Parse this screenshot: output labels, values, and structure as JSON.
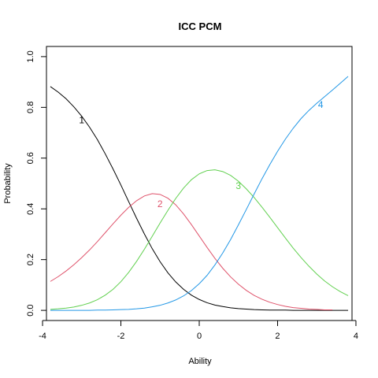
{
  "chart_data": {
    "type": "line",
    "title": "ICC PCM",
    "xlabel": "Ability",
    "ylabel": "Probability",
    "xlim": [
      -3.9,
      3.9
    ],
    "ylim": [
      0,
      1.0
    ],
    "x_ticks": [
      -4,
      -2,
      0,
      2,
      4
    ],
    "x_tick_labels": [
      "-4",
      "-2",
      "0",
      "2",
      "4"
    ],
    "y_ticks": [
      0.0,
      0.2,
      0.4,
      0.6,
      0.8,
      1.0
    ],
    "y_tick_labels": [
      "0.0",
      "0.2",
      "0.4",
      "0.6",
      "0.8",
      "1.0"
    ],
    "grid": false,
    "series": [
      {
        "name": "1",
        "color": "#000000",
        "label_at": [
          -3.0,
          0.75
        ],
        "x": [
          -3.8,
          -3.6,
          -3.4,
          -3.2,
          -3.0,
          -2.8,
          -2.6,
          -2.4,
          -2.2,
          -2.0,
          -1.8,
          -1.6,
          -1.4,
          -1.2,
          -1.0,
          -0.8,
          -0.6,
          -0.4,
          -0.2,
          0.0,
          0.2,
          0.4,
          0.6,
          0.8,
          1.0,
          1.2,
          1.4,
          1.6,
          1.8,
          2.0,
          2.2,
          2.4,
          2.6,
          2.8,
          3.0,
          3.2,
          3.4,
          3.6,
          3.8
        ],
        "y": [
          0.882,
          0.86,
          0.834,
          0.802,
          0.765,
          0.722,
          0.673,
          0.617,
          0.557,
          0.494,
          0.428,
          0.363,
          0.301,
          0.243,
          0.192,
          0.148,
          0.112,
          0.083,
          0.06,
          0.043,
          0.03,
          0.021,
          0.015,
          0.01,
          0.007,
          0.005,
          0.003,
          0.002,
          0.001,
          0.001,
          0.001,
          0.0,
          0.0,
          0.0,
          0.0,
          0.0,
          0.0,
          0.0,
          0.0
        ]
      },
      {
        "name": "2",
        "color": "#df536b",
        "label_at": [
          -1.0,
          0.42
        ],
        "x": [
          -3.8,
          -3.6,
          -3.4,
          -3.2,
          -3.0,
          -2.8,
          -2.6,
          -2.4,
          -2.2,
          -2.0,
          -1.8,
          -1.6,
          -1.4,
          -1.2,
          -1.0,
          -0.8,
          -0.6,
          -0.4,
          -0.2,
          0.0,
          0.2,
          0.4,
          0.6,
          0.8,
          1.0,
          1.2,
          1.4,
          1.6,
          1.8,
          2.0,
          2.2,
          2.4,
          2.6,
          2.8,
          3.0,
          3.2,
          3.4
        ],
        "y": [
          0.114,
          0.133,
          0.155,
          0.18,
          0.208,
          0.238,
          0.271,
          0.306,
          0.341,
          0.375,
          0.406,
          0.432,
          0.451,
          0.46,
          0.457,
          0.442,
          0.416,
          0.38,
          0.338,
          0.293,
          0.248,
          0.205,
          0.166,
          0.132,
          0.103,
          0.079,
          0.059,
          0.044,
          0.032,
          0.023,
          0.016,
          0.011,
          0.008,
          0.005,
          0.004,
          0.002,
          0.002
        ]
      },
      {
        "name": "3",
        "color": "#61d04f",
        "label_at": [
          1.0,
          0.49
        ],
        "x": [
          -3.8,
          -3.6,
          -3.4,
          -3.2,
          -3.0,
          -2.8,
          -2.6,
          -2.4,
          -2.2,
          -2.0,
          -1.8,
          -1.6,
          -1.4,
          -1.2,
          -1.0,
          -0.8,
          -0.6,
          -0.4,
          -0.2,
          0.0,
          0.2,
          0.4,
          0.6,
          0.8,
          1.0,
          1.2,
          1.4,
          1.6,
          1.8,
          2.0,
          2.2,
          2.4,
          2.6,
          2.8,
          3.0,
          3.2,
          3.4,
          3.6,
          3.8
        ],
        "y": [
          0.004,
          0.006,
          0.009,
          0.013,
          0.02,
          0.029,
          0.042,
          0.06,
          0.083,
          0.113,
          0.15,
          0.193,
          0.241,
          0.292,
          0.344,
          0.394,
          0.441,
          0.482,
          0.515,
          0.538,
          0.551,
          0.554,
          0.547,
          0.532,
          0.509,
          0.479,
          0.445,
          0.407,
          0.367,
          0.326,
          0.285,
          0.245,
          0.208,
          0.174,
          0.143,
          0.116,
          0.093,
          0.074,
          0.058
        ]
      },
      {
        "name": "4",
        "color": "#2297e6",
        "label_at": [
          3.1,
          0.81
        ],
        "x": [
          -3.8,
          -3.6,
          -3.4,
          -3.2,
          -3.0,
          -2.8,
          -2.6,
          -2.4,
          -2.2,
          -2.0,
          -1.8,
          -1.6,
          -1.4,
          -1.2,
          -1.0,
          -0.8,
          -0.6,
          -0.4,
          -0.2,
          0.0,
          0.2,
          0.4,
          0.6,
          0.8,
          1.0,
          1.2,
          1.4,
          1.6,
          1.8,
          2.0,
          2.2,
          2.4,
          2.6,
          2.8,
          3.0,
          3.2,
          3.4,
          3.6,
          3.8
        ],
        "y": [
          0.0,
          0.0,
          0.0,
          0.0,
          0.0,
          0.0,
          0.001,
          0.001,
          0.002,
          0.003,
          0.004,
          0.006,
          0.009,
          0.014,
          0.02,
          0.029,
          0.041,
          0.057,
          0.078,
          0.105,
          0.138,
          0.179,
          0.226,
          0.279,
          0.337,
          0.397,
          0.458,
          0.518,
          0.574,
          0.627,
          0.675,
          0.718,
          0.756,
          0.788,
          0.816,
          0.842,
          0.868,
          0.895,
          0.922
        ]
      }
    ]
  }
}
